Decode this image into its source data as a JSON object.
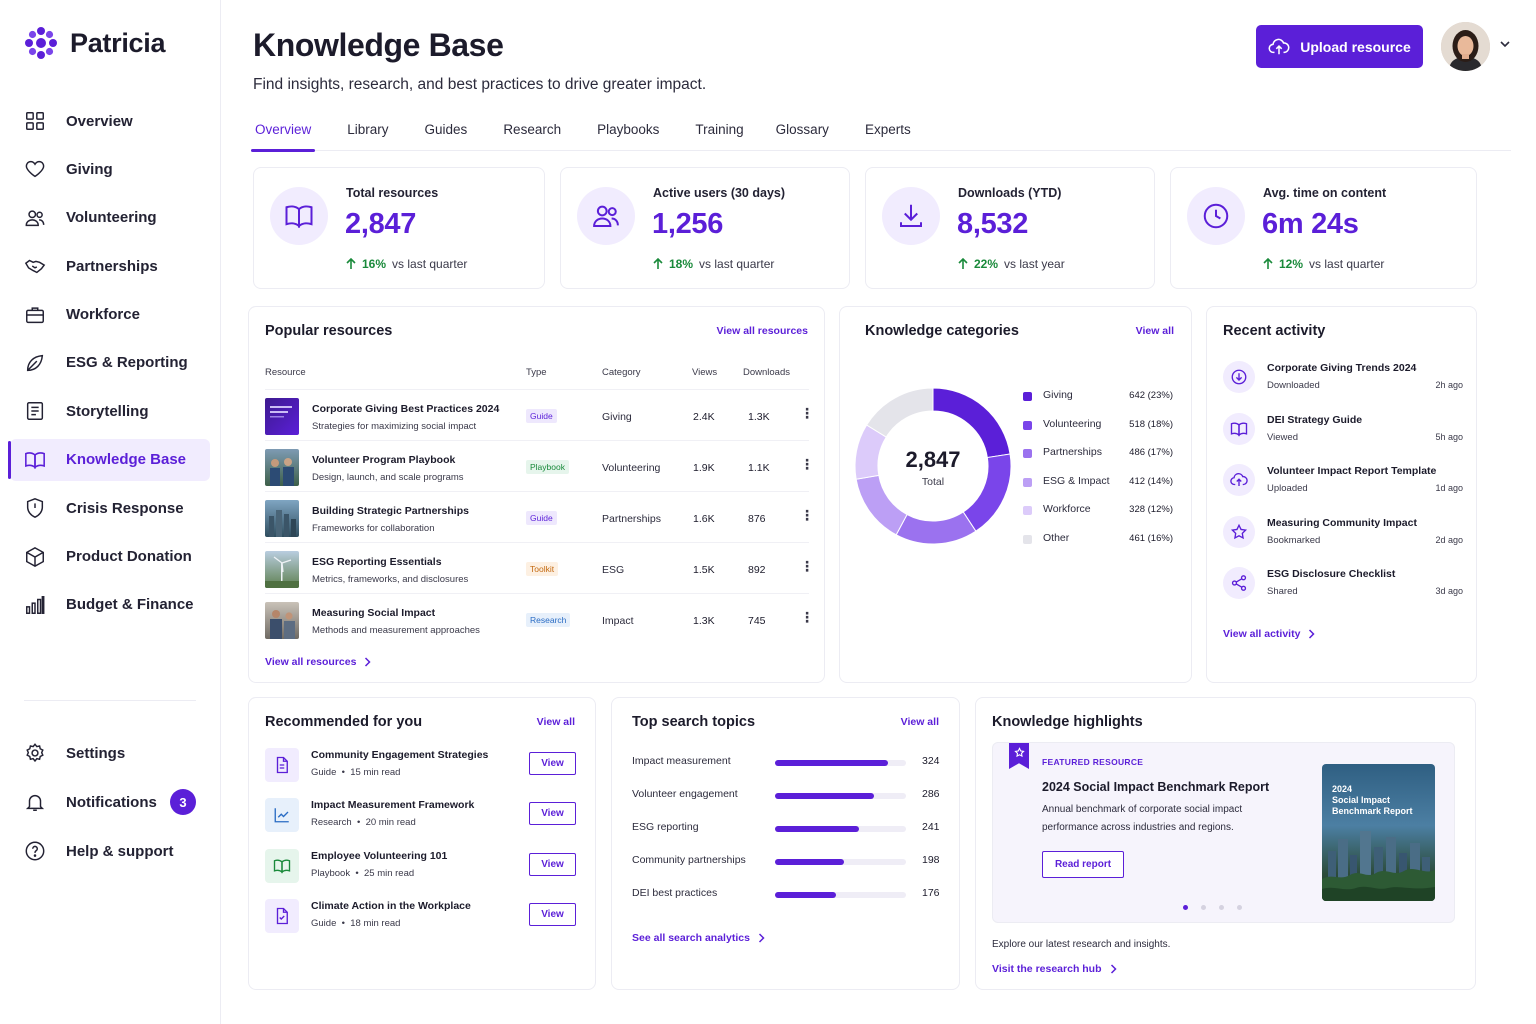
{
  "app": {
    "brand": "Patricia"
  },
  "sidebar": {
    "items": [
      {
        "label": "Overview",
        "icon": "grid-icon"
      },
      {
        "label": "Giving",
        "icon": "heart-icon"
      },
      {
        "label": "Volunteering",
        "icon": "users-icon"
      },
      {
        "label": "Partnerships",
        "icon": "handshake-icon"
      },
      {
        "label": "Workforce",
        "icon": "briefcase-icon"
      },
      {
        "label": "ESG & Reporting",
        "icon": "leaf-icon"
      },
      {
        "label": "Storytelling",
        "icon": "document-icon"
      },
      {
        "label": "Knowledge Base",
        "icon": "book-open-icon",
        "active": true
      },
      {
        "label": "Crisis Response",
        "icon": "shield-icon"
      },
      {
        "label": "Product Donation",
        "icon": "box-icon"
      },
      {
        "label": "Budget & Finance",
        "icon": "bar-chart-icon"
      }
    ],
    "bottom": [
      {
        "label": "Settings",
        "icon": "gear-icon"
      },
      {
        "label": "Notifications",
        "icon": "bell-icon",
        "badge": "3"
      },
      {
        "label": "Help & support",
        "icon": "help-circle-icon"
      }
    ]
  },
  "header": {
    "title": "Knowledge Base",
    "subtitle": "Find insights, research, and best practices to drive greater impact.",
    "upload_label": "Upload resource"
  },
  "tabs": [
    "Overview",
    "Library",
    "Guides",
    "Research",
    "Playbooks",
    "Training",
    "Glossary",
    "Experts"
  ],
  "stats": [
    {
      "label": "Total resources",
      "value": "2,847",
      "pct": "16%",
      "suffix": "vs last quarter",
      "icon": "book-open-icon"
    },
    {
      "label": "Active users (30 days)",
      "value": "1,256",
      "pct": "18%",
      "suffix": "vs last quarter",
      "icon": "users-icon"
    },
    {
      "label": "Downloads (YTD)",
      "value": "8,532",
      "pct": "22%",
      "suffix": "vs last year",
      "icon": "download-icon"
    },
    {
      "label": "Avg. time on content",
      "value": "6m 24s",
      "pct": "12%",
      "suffix": "vs last quarter",
      "icon": "clock-icon"
    }
  ],
  "popular": {
    "title": "Popular resources",
    "view_all_top": "View all resources",
    "view_all_bottom": "View all resources",
    "columns": {
      "resource": "Resource",
      "type": "Type",
      "category": "Category",
      "views": "Views",
      "downloads": "Downloads"
    },
    "rows": [
      {
        "title": "Corporate Giving Best Practices 2024",
        "sub": "Strategies for maximizing social impact",
        "type": "Guide",
        "category": "Giving",
        "views": "2.4K",
        "downloads": "1.3K"
      },
      {
        "title": "Volunteer Program Playbook",
        "sub": "Design, launch, and scale programs",
        "type": "Playbook",
        "category": "Volunteering",
        "views": "1.9K",
        "downloads": "1.1K"
      },
      {
        "title": "Building Strategic Partnerships",
        "sub": "Frameworks for collaboration",
        "type": "Guide",
        "category": "Partnerships",
        "views": "1.6K",
        "downloads": "876"
      },
      {
        "title": "ESG Reporting Essentials",
        "sub": "Metrics, frameworks, and disclosures",
        "type": "Toolkit",
        "category": "ESG",
        "views": "1.5K",
        "downloads": "892"
      },
      {
        "title": "Measuring Social Impact",
        "sub": "Methods and measurement approaches",
        "type": "Research",
        "category": "Impact",
        "views": "1.3K",
        "downloads": "745"
      }
    ]
  },
  "categories": {
    "title": "Knowledge categories",
    "view_all": "View all",
    "total": "2,847",
    "total_label": "Total",
    "items": [
      {
        "name": "Giving",
        "value": 642,
        "label": "642 (23%)",
        "color": "#5b1fd8"
      },
      {
        "name": "Volunteering",
        "value": 518,
        "label": "518 (18%)",
        "color": "#7a45ea"
      },
      {
        "name": "Partnerships",
        "value": 486,
        "label": "486 (17%)",
        "color": "#9b72ef"
      },
      {
        "name": "ESG & Impact",
        "value": 412,
        "label": "412 (14%)",
        "color": "#bc9ff5"
      },
      {
        "name": "Workforce",
        "value": 328,
        "label": "328 (12%)",
        "color": "#dccbfa"
      },
      {
        "name": "Other",
        "value": 461,
        "label": "461 (16%)",
        "color": "#e4e4ea"
      }
    ]
  },
  "activity": {
    "title": "Recent activity",
    "view_all": "View all activity",
    "items": [
      {
        "title": "Corporate Giving Trends 2024",
        "action": "Downloaded",
        "time": "2h ago",
        "icon": "download-icon"
      },
      {
        "title": "DEI Strategy Guide",
        "action": "Viewed",
        "time": "5h ago",
        "icon": "book-open-icon"
      },
      {
        "title": "Volunteer Impact Report Template",
        "action": "Uploaded",
        "time": "1d ago",
        "icon": "upload-cloud-icon"
      },
      {
        "title": "Measuring Community Impact",
        "action": "Bookmarked",
        "time": "2d ago",
        "icon": "star-icon"
      },
      {
        "title": "ESG Disclosure Checklist",
        "action": "Shared",
        "time": "3d ago",
        "icon": "share-icon"
      }
    ]
  },
  "recommended": {
    "title": "Recommended for you",
    "view_all": "View all",
    "button_label": "View",
    "items": [
      {
        "title": "Community Engagement Strategies",
        "type": "Guide",
        "read": "15 min read",
        "icon": "file-icon",
        "color": "#f1ecfe"
      },
      {
        "title": "Impact Measurement Framework",
        "type": "Research",
        "read": "20 min read",
        "icon": "chart-line-icon",
        "color": "#e7f0fb"
      },
      {
        "title": "Employee Volunteering 101",
        "type": "Playbook",
        "read": "25 min read",
        "icon": "book-open-icon",
        "color": "#e6f5ec"
      },
      {
        "title": "Climate Action in the Workplace",
        "type": "Guide",
        "read": "18 min read",
        "icon": "file-check-icon",
        "color": "#f1ecfe"
      }
    ]
  },
  "search_topics": {
    "title": "Top search topics",
    "view_all": "View all",
    "footer_link": "See all search analytics",
    "max": 324,
    "items": [
      {
        "name": "Impact measurement",
        "count": 324
      },
      {
        "name": "Volunteer engagement",
        "count": 286
      },
      {
        "name": "ESG reporting",
        "count": 241
      },
      {
        "name": "Community partnerships",
        "count": 198
      },
      {
        "name": "DEI best practices",
        "count": 176
      }
    ]
  },
  "highlights": {
    "title": "Knowledge highlights",
    "tag": "FEATURED RESOURCE",
    "feature_title": "2024 Social Impact Benchmark Report",
    "feature_desc": "Annual benchmark of corporate social impact performance across industries and regions.",
    "button": "Read report",
    "cover_year": "2024",
    "cover_title": "Social Impact Benchmark Report",
    "footer_text": "Explore our latest research and insights.",
    "footer_link": "Visit the research hub"
  }
}
